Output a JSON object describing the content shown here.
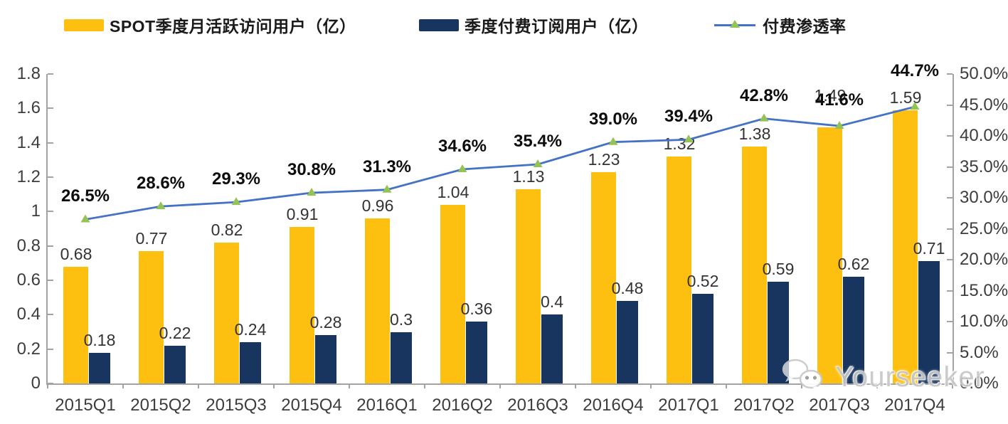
{
  "legend": {
    "items": [
      {
        "label": "SPOT季度月活跃访问用户（亿）",
        "swatch": "bar",
        "color": "#FDC010"
      },
      {
        "label": "季度付费订阅用户（亿）",
        "swatch": "bar",
        "color": "#17355E"
      },
      {
        "label": "付费渗透率",
        "swatch": "line",
        "color": "#4472C4",
        "marker_color": "#94C254"
      }
    ]
  },
  "chart_data": {
    "type": "bar",
    "combo": "dual-axis bar + line",
    "title": "",
    "grid": false,
    "legend_position": "top",
    "categories": [
      "2015Q1",
      "2015Q2",
      "2015Q3",
      "2015Q4",
      "2016Q1",
      "2016Q2",
      "2016Q3",
      "2016Q4",
      "2017Q1",
      "2017Q2",
      "2017Q3",
      "2017Q4"
    ],
    "series": [
      {
        "name": "SPOT季度月活跃访问用户（亿）",
        "type": "bar",
        "axis": "left",
        "color": "#FDC010",
        "values": [
          0.68,
          0.77,
          0.82,
          0.91,
          0.96,
          1.04,
          1.13,
          1.23,
          1.32,
          1.38,
          1.49,
          1.59
        ],
        "labels": [
          "0.68",
          "0.77",
          "0.82",
          "0.91",
          "0.96",
          "1.04",
          "1.13",
          "1.23",
          "1.32",
          "1.38",
          "1.49",
          "1.59"
        ]
      },
      {
        "name": "季度付费订阅用户（亿）",
        "type": "bar",
        "axis": "left",
        "color": "#17355E",
        "values": [
          0.18,
          0.22,
          0.24,
          0.28,
          0.3,
          0.36,
          0.4,
          0.48,
          0.52,
          0.59,
          0.62,
          0.71
        ],
        "labels": [
          "0.18",
          "0.22",
          "0.24",
          "0.28",
          "0.3",
          "0.36",
          "0.4",
          "0.48",
          "0.52",
          "0.59",
          "0.62",
          "0.71"
        ]
      },
      {
        "name": "付费渗透率",
        "type": "line",
        "axis": "right",
        "color": "#4472C4",
        "marker": "triangle",
        "marker_color": "#94C254",
        "values": [
          26.5,
          28.6,
          29.3,
          30.8,
          31.3,
          34.6,
          35.4,
          39.0,
          39.4,
          42.8,
          41.6,
          44.7
        ],
        "labels": [
          "26.5%",
          "28.6%",
          "29.3%",
          "30.8%",
          "31.3%",
          "34.6%",
          "35.4%",
          "39.0%",
          "39.4%",
          "42.8%",
          "41.6%",
          "44.7%"
        ]
      }
    ],
    "left_axis": {
      "min": 0,
      "max": 1.8,
      "tick_labels": [
        "0",
        "0.2",
        "0.4",
        "0.6",
        "0.8",
        "1",
        "1.2",
        "1.4",
        "1.6",
        "1.8"
      ]
    },
    "right_axis": {
      "min": 0,
      "max": 50,
      "tick_labels": [
        "0.0%",
        "5.0%",
        "10.0%",
        "15.0%",
        "20.0%",
        "25.0%",
        "30.0%",
        "35.0%",
        "40.0%",
        "45.0%",
        "50.0%"
      ]
    }
  },
  "watermark": {
    "text": "Yourseeker"
  }
}
